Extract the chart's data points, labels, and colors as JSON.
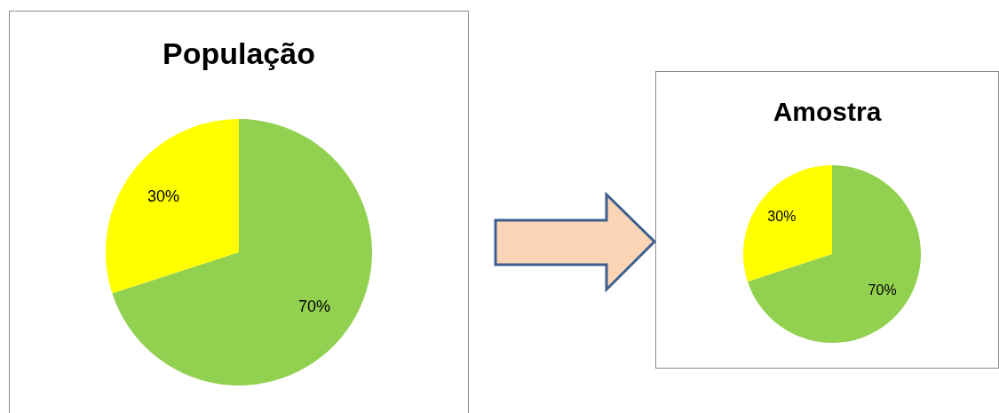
{
  "chart_data": [
    {
      "type": "pie",
      "title": "População",
      "categories": [
        null,
        null
      ],
      "values": [
        70,
        30
      ],
      "colors": [
        "#92d050",
        "#ffff00"
      ],
      "value_labels": [
        "70%",
        "30%"
      ],
      "legend": false
    },
    {
      "type": "pie",
      "title": "Amostra",
      "categories": [
        null,
        null
      ],
      "values": [
        70,
        30
      ],
      "colors": [
        "#92d050",
        "#ffff00"
      ],
      "value_labels": [
        "70%",
        "30%"
      ],
      "legend": false
    }
  ]
}
